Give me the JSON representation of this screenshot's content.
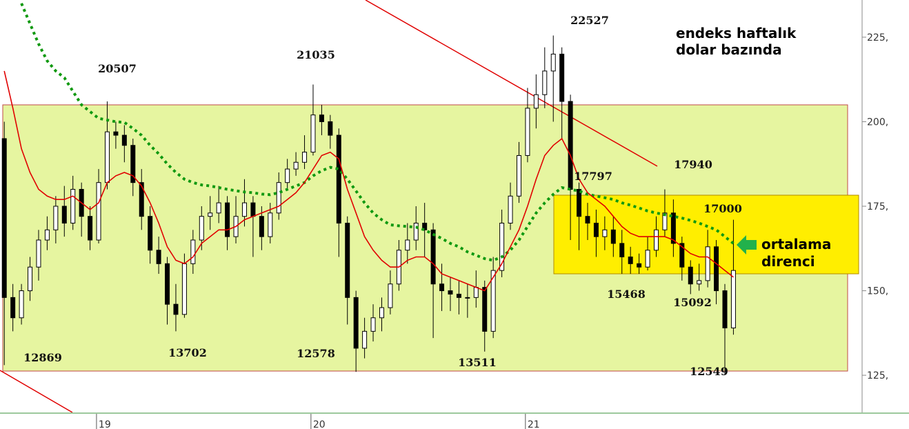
{
  "chart_data": {
    "type": "candlestick",
    "title_lines": [
      "endeks haftalık",
      "dolar bazında"
    ],
    "callout_lines": [
      "ortalama",
      "direnci"
    ],
    "annotations": [
      "20507",
      "21035",
      "22527",
      "12869",
      "13702",
      "12578",
      "13511",
      "17797",
      "17940",
      "17000",
      "15468",
      "15092",
      "12549"
    ],
    "x": [
      18.57,
      18.61,
      18.65,
      18.69,
      18.73,
      18.77,
      18.81,
      18.85,
      18.89,
      18.93,
      18.97,
      19.01,
      19.05,
      19.09,
      19.13,
      19.17,
      19.21,
      19.25,
      19.29,
      19.33,
      19.37,
      19.41,
      19.45,
      19.49,
      19.53,
      19.57,
      19.61,
      19.65,
      19.69,
      19.73,
      19.77,
      19.81,
      19.85,
      19.89,
      19.93,
      19.97,
      20.01,
      20.05,
      20.09,
      20.13,
      20.17,
      20.21,
      20.25,
      20.29,
      20.33,
      20.37,
      20.41,
      20.45,
      20.49,
      20.53,
      20.57,
      20.61,
      20.65,
      20.69,
      20.73,
      20.77,
      20.81,
      20.85,
      20.89,
      20.93,
      20.97,
      21.01,
      21.05,
      21.09,
      21.13,
      21.17,
      21.21,
      21.25,
      21.29,
      21.33,
      21.37,
      21.41,
      21.45,
      21.49,
      21.53,
      21.57,
      21.61,
      21.65,
      21.69,
      21.73,
      21.77,
      21.81,
      21.85,
      21.89,
      21.93,
      21.97
    ],
    "open": [
      195,
      148,
      142,
      150,
      157,
      165,
      168,
      175,
      170,
      180,
      172,
      165,
      182,
      197,
      196,
      193,
      182,
      172,
      162,
      158,
      146,
      143,
      158,
      165,
      172,
      173,
      176,
      166,
      172,
      176,
      172,
      166,
      173,
      182,
      186,
      188,
      191,
      202,
      200,
      196,
      170,
      148,
      133,
      138,
      142,
      145,
      152,
      162,
      165,
      170,
      168,
      152,
      150,
      149,
      148,
      148,
      151,
      138,
      156,
      170,
      178,
      190,
      204,
      208,
      215,
      220,
      206,
      180,
      172,
      170,
      166,
      168,
      164,
      160,
      158,
      157,
      162,
      168,
      173,
      164,
      157,
      152,
      153,
      163,
      150,
      139
    ],
    "high": [
      200,
      152,
      152,
      160,
      168,
      172,
      178,
      181,
      184,
      182,
      175,
      186,
      206,
      200,
      199,
      195,
      186,
      175,
      166,
      160,
      152,
      161,
      168,
      175,
      178,
      181,
      178,
      178,
      183,
      178,
      175,
      176,
      185,
      189,
      191,
      196,
      211,
      205,
      202,
      198,
      172,
      150,
      142,
      146,
      148,
      156,
      165,
      170,
      175,
      176,
      170,
      158,
      154,
      153,
      152,
      156,
      153,
      160,
      174,
      182,
      194,
      210,
      214,
      222,
      225.5,
      222,
      208,
      182,
      176,
      174,
      172,
      172,
      168,
      163,
      161,
      166,
      172,
      180,
      177,
      166,
      159,
      158,
      168,
      165,
      152,
      171
    ],
    "low": [
      128,
      138,
      140,
      147,
      153,
      162,
      164,
      166,
      168,
      166,
      162,
      164,
      180,
      192,
      188,
      178,
      168,
      158,
      155,
      140,
      138,
      142,
      155,
      162,
      168,
      170,
      162,
      164,
      169,
      160,
      162,
      164,
      171,
      180,
      184,
      186,
      190,
      196,
      192,
      160,
      140,
      126,
      130,
      135,
      138,
      143,
      150,
      158,
      162,
      160,
      136,
      144,
      144,
      143,
      142,
      145,
      132,
      136,
      154,
      168,
      176,
      188,
      198,
      204,
      200,
      195,
      165,
      162,
      165,
      160,
      162,
      160,
      155,
      155,
      155,
      156,
      160,
      166,
      160,
      153,
      149,
      150,
      151,
      146,
      125.3,
      137
    ],
    "close": [
      148,
      142,
      150,
      157,
      165,
      168,
      175,
      170,
      180,
      172,
      165,
      182,
      197,
      196,
      193,
      182,
      172,
      162,
      158,
      146,
      143,
      158,
      165,
      172,
      173,
      176,
      166,
      172,
      176,
      172,
      166,
      173,
      182,
      186,
      188,
      191,
      202,
      200,
      196,
      170,
      148,
      133,
      138,
      142,
      145,
      152,
      162,
      165,
      170,
      168,
      152,
      150,
      149,
      148,
      148,
      151,
      138,
      156,
      170,
      178,
      190,
      204,
      208,
      215,
      220,
      206,
      180,
      172,
      170,
      166,
      168,
      164,
      160,
      158,
      157,
      162,
      168,
      173,
      164,
      157,
      152,
      153,
      163,
      150,
      139,
      156
    ],
    "ma_fast": {
      "color": "#e00000",
      "values": [
        215,
        204,
        192,
        185,
        180,
        178,
        177,
        177,
        178,
        176,
        174,
        176,
        182,
        184,
        185,
        184,
        181,
        176,
        170,
        163,
        159,
        158,
        160,
        164,
        166,
        168,
        168,
        169,
        171,
        172,
        173,
        174,
        175,
        177,
        179,
        182,
        186,
        190,
        191,
        189,
        180,
        173,
        166,
        162,
        159,
        157,
        157,
        159,
        160,
        160,
        158,
        155,
        154,
        153,
        152,
        151,
        150,
        154,
        158,
        163,
        168,
        175,
        183,
        190,
        193,
        195,
        190,
        183,
        179,
        177,
        175,
        172,
        169,
        167,
        166,
        166,
        166,
        166,
        165,
        163,
        161,
        160,
        160,
        158,
        156,
        154
      ]
    },
    "ma_slow": {
      "color": "#119911",
      "values": [
        null,
        null,
        235,
        229,
        223,
        218,
        215,
        213,
        209,
        205,
        203,
        201,
        200.5,
        200,
        199.8,
        198,
        196,
        193,
        190.5,
        187.5,
        185,
        183,
        182,
        181.3,
        181,
        180.5,
        180,
        179.6,
        179.2,
        179,
        178.6,
        178.4,
        179,
        180,
        181,
        182,
        184,
        185.5,
        186.5,
        186,
        183,
        179.5,
        176,
        173,
        171,
        169.5,
        169.2,
        169,
        168.8,
        168,
        166.7,
        165.5,
        164,
        163,
        161.5,
        160.5,
        159.5,
        159,
        160,
        162,
        165,
        169,
        173,
        176,
        178.5,
        180.5,
        180,
        179.5,
        178.5,
        178,
        177.5,
        177,
        176,
        175.3,
        174.5,
        173.6,
        173,
        172.5,
        172,
        171.5,
        170.8,
        170,
        169,
        168,
        166,
        164
      ]
    },
    "xlim": [
      18.55,
      22.57
    ],
    "ylim": [
      114,
      236
    ],
    "xticks": [
      19,
      20,
      21
    ],
    "yticks": [
      {
        "value": 125,
        "label": "125,"
      },
      {
        "value": 150,
        "label": "150,"
      },
      {
        "value": 175,
        "label": "175,"
      },
      {
        "value": 200,
        "label": "200,"
      },
      {
        "value": 225,
        "label": "225,"
      }
    ]
  }
}
